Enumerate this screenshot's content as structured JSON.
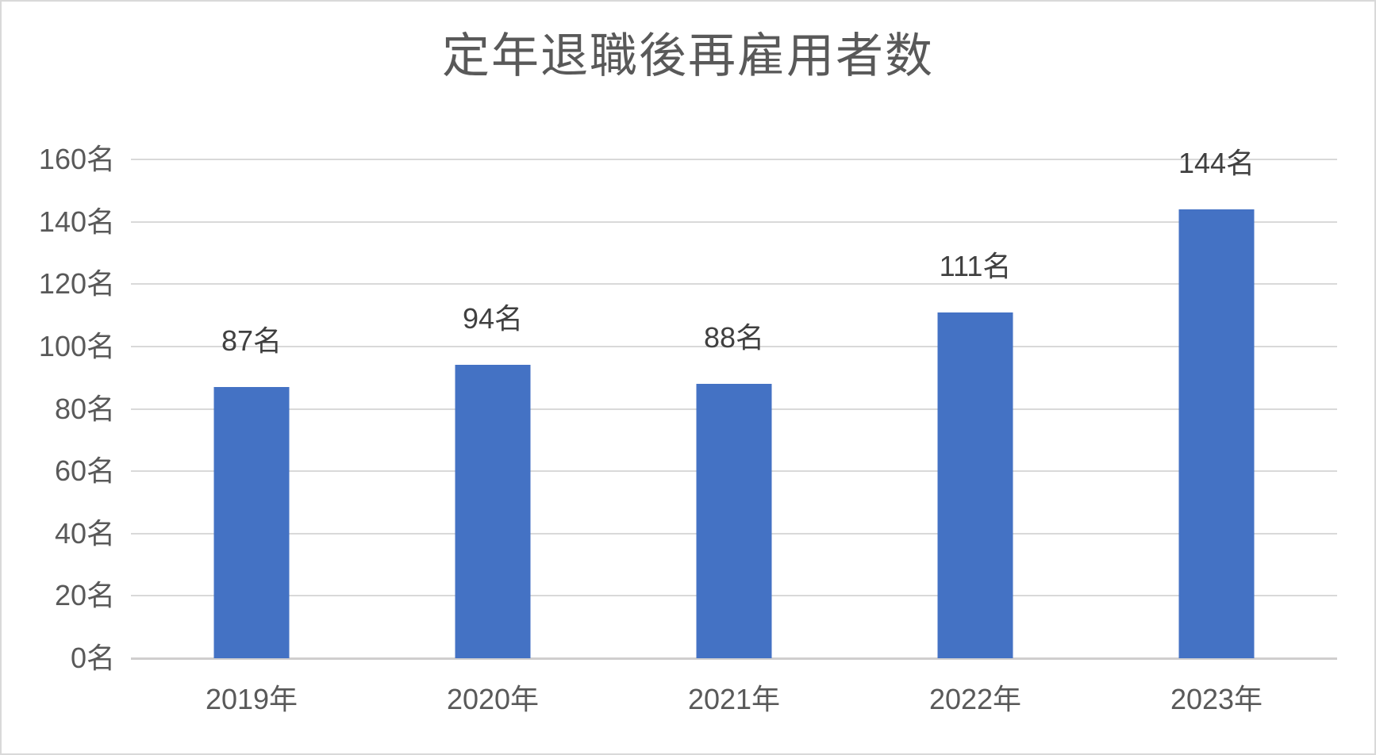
{
  "window": {
    "background": "#ffffff",
    "border_color": "#d9d9d9"
  },
  "chart_data": {
    "type": "bar",
    "title": "定年退職後再雇用者数",
    "categories": [
      "2019年",
      "2020年",
      "2021年",
      "2022年",
      "2023年"
    ],
    "values": [
      87,
      94,
      88,
      111,
      144
    ],
    "data_labels": [
      "87名",
      "94名",
      "88名",
      "111名",
      "144名"
    ],
    "unit": "名",
    "xlabel": "",
    "ylabel": "",
    "ylim": [
      0,
      160
    ],
    "y_tick_step": 20,
    "y_tick_labels": [
      "0名",
      "20名",
      "40名",
      "60名",
      "80名",
      "100名",
      "120名",
      "140名",
      "160名"
    ],
    "grid": true,
    "legend": "none",
    "bar_color": "#4472C4",
    "gridline_color": "#D9D9D9",
    "axis_line_color": "#D0CECE",
    "title_color": "#595959",
    "tick_label_color": "#595959",
    "data_label_color": "#404040"
  }
}
